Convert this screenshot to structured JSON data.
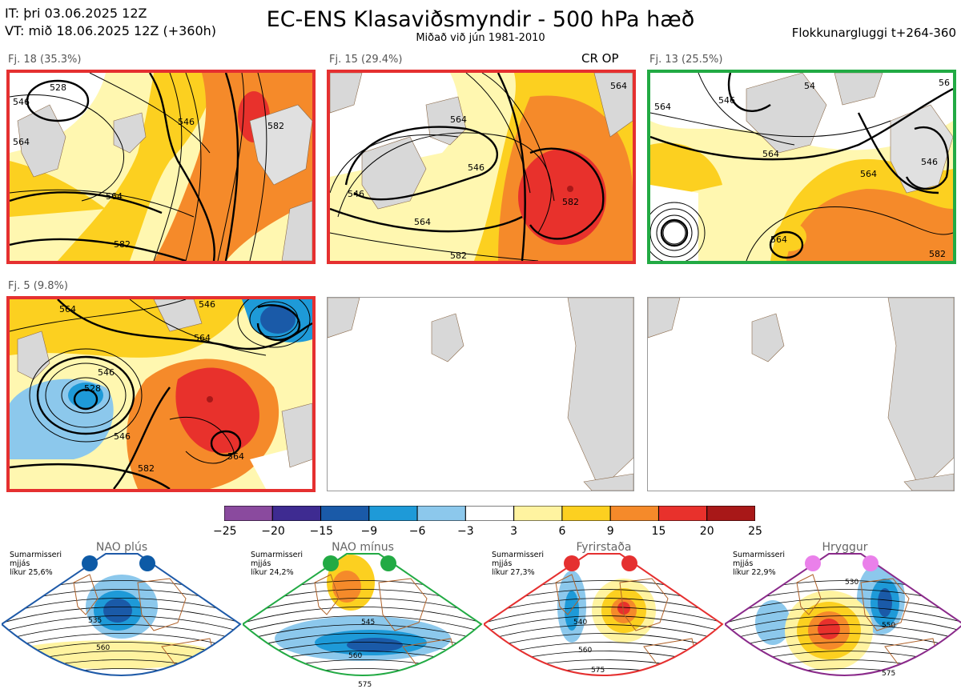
{
  "header": {
    "it_line": "IT: þri 03.06.2025 12Z",
    "vt_line": "VT: mið 18.06.2025 12Z  (+360h)",
    "title": "EC-ENS Klasaviðsmyndir - 500 hPa hæð",
    "subtitle": "Miðað við jún 1981-2010",
    "window": "Flokkunargluggi t+264-360"
  },
  "clusters": [
    {
      "label": "Fj. 18 (35.3%)",
      "regime_color": "#e53030",
      "contours": [
        "528",
        "546",
        "564",
        "546",
        "564",
        "582",
        "582"
      ]
    },
    {
      "label": "Fj. 15 (29.4%)",
      "tag": "CR OP",
      "regime_color": "#e53030",
      "contours": [
        "564",
        "546",
        "546",
        "564",
        "582",
        "582",
        "564"
      ]
    },
    {
      "label": "Fj. 13 (25.5%)",
      "regime_color": "#22aa44",
      "contours": [
        "564",
        "546",
        "564",
        "564",
        "582",
        "546",
        "564",
        "56",
        "54"
      ]
    },
    {
      "label": "Fj. 5 (9.8%)",
      "regime_color": "#e53030",
      "contours": [
        "564",
        "546",
        "528",
        "564",
        "564",
        "582",
        "546",
        "546"
      ]
    }
  ],
  "colorbar": {
    "ticks": [
      "−25",
      "−20",
      "−15",
      "−9",
      "−6",
      "−3",
      "3",
      "6",
      "9",
      "15",
      "20",
      "25"
    ],
    "colors": [
      "#8a4a9e",
      "#3e2b91",
      "#1a5aa8",
      "#1e9ad8",
      "#8cc8ec",
      "#ffffff",
      "#fff3a0",
      "#fcd020",
      "#f58a2a",
      "#e8312c",
      "#a81818"
    ]
  },
  "regimes": [
    {
      "name": "NAO plús",
      "note": [
        "Sumarmisseri",
        "mjjás",
        "líkur 25,6%"
      ],
      "color": "#1e5aa8",
      "dot": "#0d5aa6",
      "labels": [
        "535",
        "560"
      ]
    },
    {
      "name": "NAO mínus",
      "note": [
        "Sumarmisseri",
        "mjjás",
        "líkur 24,2%"
      ],
      "color": "#22aa44",
      "dot": "#22aa44",
      "labels": [
        "545",
        "560",
        "575"
      ]
    },
    {
      "name": "Fyrirstaða",
      "note": [
        "Sumarmisseri",
        "mjjás",
        "líkur 27,3%"
      ],
      "color": "#e53030",
      "dot": "#e53030",
      "labels": [
        "540",
        "560",
        "575"
      ]
    },
    {
      "name": "Hryggur",
      "note": [
        "Sumarmisseri",
        "mjjás",
        "líkur 22,9%"
      ],
      "color": "#8a2a8a",
      "dot": "#ea80ea",
      "labels": [
        "530",
        "550",
        "575"
      ]
    }
  ]
}
